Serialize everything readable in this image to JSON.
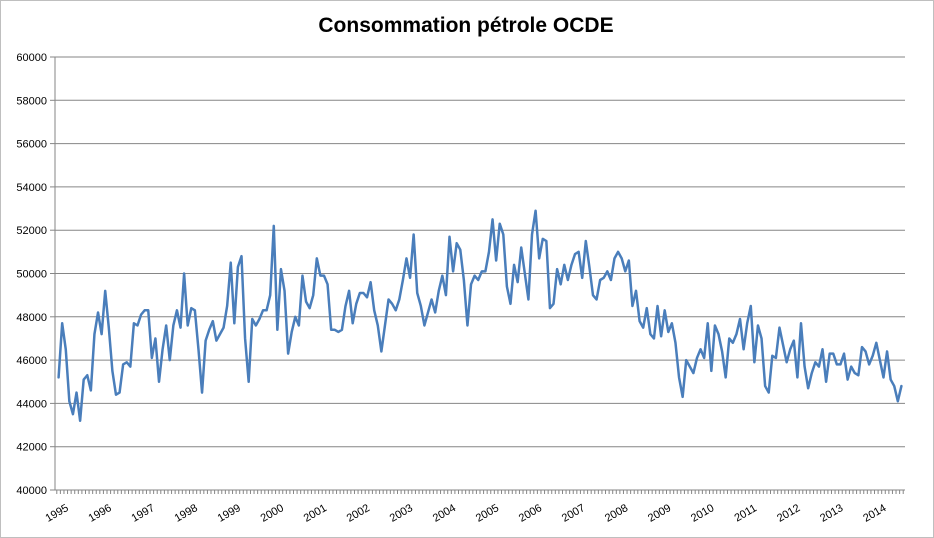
{
  "chart_data": {
    "type": "line",
    "title": "Consommation pétrole OCDE",
    "xlabel": "",
    "ylabel": "",
    "ylim": [
      40000,
      60000
    ],
    "yticks": [
      "40000",
      "42000",
      "44000",
      "46000",
      "48000",
      "50000",
      "52000",
      "54000",
      "56000",
      "58000",
      "60000"
    ],
    "xticks": [
      "1995",
      "1996",
      "1997",
      "1998",
      "1999",
      "2000",
      "2001",
      "2002",
      "2003",
      "2004",
      "2005",
      "2006",
      "2007",
      "2008",
      "2009",
      "2010",
      "2011",
      "2012",
      "2013",
      "2014"
    ],
    "grid": true,
    "legend": "none",
    "series": [
      {
        "color": "#4a7ebb",
        "frequency": "monthly",
        "start": "1995-01",
        "values": [
          45200,
          47700,
          46500,
          44100,
          43500,
          44500,
          43200,
          45100,
          45300,
          44600,
          47200,
          48200,
          47200,
          49200,
          47500,
          45500,
          44400,
          44500,
          45800,
          45900,
          45700,
          47700,
          47600,
          48100,
          48300,
          48300,
          46100,
          47000,
          45000,
          46500,
          47600,
          46000,
          47600,
          48300,
          47500,
          50000,
          47600,
          48400,
          48300,
          46500,
          44500,
          46900,
          47400,
          47800,
          46900,
          47200,
          47500,
          48500,
          50500,
          47700,
          50300,
          50800,
          47000,
          45000,
          47900,
          47600,
          47900,
          48300,
          48300,
          49000,
          52200,
          47400,
          50200,
          49200,
          46300,
          47300,
          48000,
          47600,
          49900,
          48700,
          48400,
          49000,
          50700,
          49900,
          49900,
          49500,
          47400,
          47400,
          47300,
          47400,
          48500,
          49200,
          47700,
          48600,
          49100,
          49100,
          48900,
          49600,
          48300,
          47600,
          46400,
          47600,
          48800,
          48600,
          48300,
          48800,
          49700,
          50700,
          49800,
          51800,
          49100,
          48500,
          47600,
          48200,
          48800,
          48200,
          49200,
          49900,
          49000,
          51700,
          50100,
          51400,
          51100,
          49700,
          47600,
          49500,
          49900,
          49700,
          50100,
          50100,
          51000,
          52500,
          50600,
          52300,
          51800,
          49400,
          48600,
          50400,
          49600,
          51200,
          50000,
          48800,
          51800,
          52900,
          50700,
          51600,
          51500,
          48400,
          48600,
          50200,
          49500,
          50400,
          49700,
          50400,
          50900,
          51000,
          49800,
          51500,
          50300,
          49000,
          48800,
          49700,
          49800,
          50100,
          49700,
          50700,
          51000,
          50700,
          50100,
          50600,
          48500,
          49200,
          47800,
          47500,
          48400,
          47200,
          47000,
          48500,
          47100,
          48300,
          47300,
          47700,
          46800,
          45200,
          44300,
          46000,
          45700,
          45400,
          46100,
          46500,
          46100,
          47700,
          45500,
          47600,
          47200,
          46400,
          45200,
          47000,
          46800,
          47200,
          47900,
          46500,
          47700,
          48500,
          45900,
          47600,
          47000,
          44800,
          44500,
          46200,
          46100,
          47500,
          46700,
          45900,
          46500,
          46900,
          45200,
          47700,
          45700,
          44700,
          45400,
          45900,
          45700,
          46500,
          45000,
          46300,
          46300,
          45800,
          45800,
          46300,
          45100,
          45700,
          45400,
          45300,
          46600,
          46400,
          45800,
          46200,
          46800,
          46000,
          45200,
          46400,
          45100,
          44800,
          44100,
          44800
        ]
      }
    ]
  }
}
